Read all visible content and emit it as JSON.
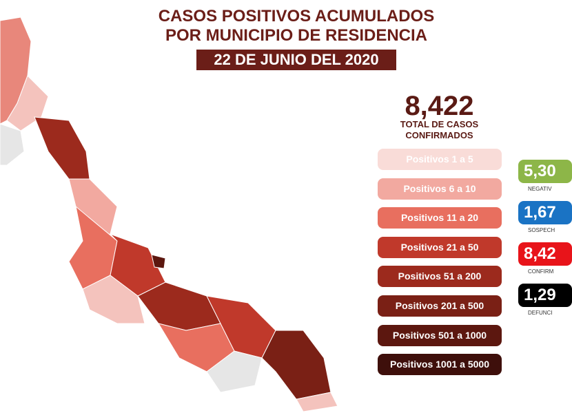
{
  "header": {
    "title_lines": [
      "CASOS POSITIVOS ACUMULADOS",
      "POR MUNICIPIO DE RESIDENCIA"
    ],
    "date": "22 DE JUNIO DEL 2020"
  },
  "total": {
    "value": "8,422",
    "label_lines": [
      "TOTAL DE CASOS",
      "CONFIRMADOS"
    ]
  },
  "legend": [
    "Positivos 1 a 5",
    "Positivos 6 a 10",
    "Positivos 11 a 20",
    "Positivos 21 a 50",
    "Positivos 51 a 200",
    "Positivos 201 a 500",
    "Positivos 501 a 1000",
    "Positivos 1001 a 5000"
  ],
  "stats": [
    {
      "value": "5,30",
      "label": "NEGATIV"
    },
    {
      "value": "1,67",
      "label": "SOSPECH"
    },
    {
      "value": "8,42",
      "label": "CONFIRM"
    },
    {
      "value": "1,29",
      "label": "DEFUNCI"
    }
  ]
}
